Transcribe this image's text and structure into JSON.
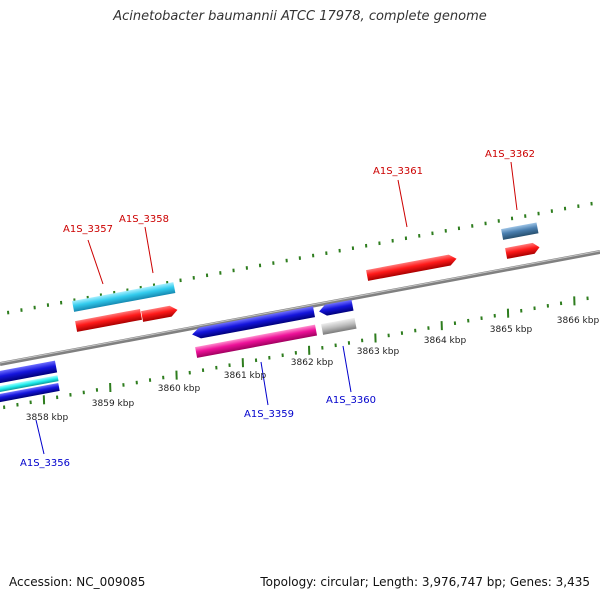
{
  "title": "Acinetobacter baumannii ATCC 17978, complete genome",
  "footer": {
    "accession": "Accession: NC_009085",
    "topology": "Topology: circular; Length: 3,976,747 bp; Genes: 3,435"
  },
  "colors": {
    "backbone": "#808080",
    "tick": "#2e7d1e",
    "label_forward": "#cc0000",
    "label_reverse": "#0000cc",
    "gene_red": "#ff1a1a",
    "gene_cyan": "#33ccee",
    "gene_blue": "#1515dd",
    "gene_magenta": "#ee1199",
    "gene_steel": "#4a7fb0",
    "gene_gray": "#bbbbbb",
    "gene_aqua": "#22eeee"
  },
  "scale_labels": [
    "3858 kbp",
    "3859 kbp",
    "3860 kbp",
    "3861 kbp",
    "3862 kbp",
    "3863 kbp",
    "3864 kbp",
    "3865 kbp",
    "3866 kbp"
  ],
  "gene_labels": [
    {
      "id": "A1S_3357",
      "strand": "forward"
    },
    {
      "id": "A1S_3358",
      "strand": "forward"
    },
    {
      "id": "A1S_3361",
      "strand": "forward"
    },
    {
      "id": "A1S_3362",
      "strand": "forward"
    },
    {
      "id": "A1S_3356",
      "strand": "reverse"
    },
    {
      "id": "A1S_3359",
      "strand": "reverse"
    },
    {
      "id": "A1S_3360",
      "strand": "reverse"
    }
  ]
}
